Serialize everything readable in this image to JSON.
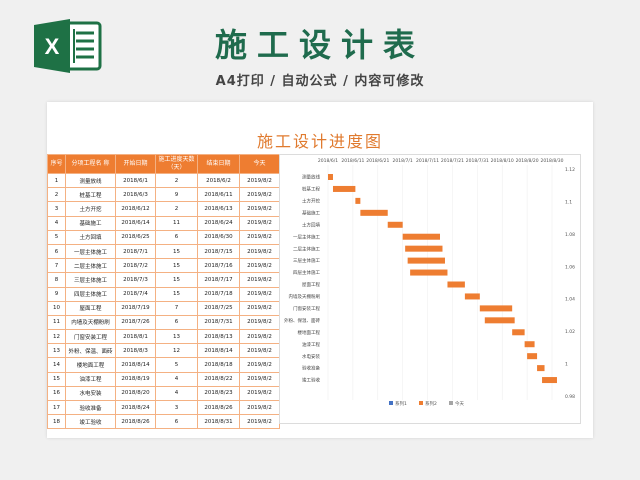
{
  "header": {
    "title": "施工设计表",
    "subtitle": "A4打印 / 自动公式 / 内容可修改"
  },
  "colors": {
    "accent": "#ee7d31",
    "title_green": "#1f6b4d",
    "excel_green": "#1e7145"
  },
  "icons": {
    "app_icon": "excel-icon"
  },
  "sheet": {
    "title": "施工设计进度图"
  },
  "table": {
    "columns": [
      "序号",
      "分项工程名 称",
      "开始日期",
      "施工进度天数（天）",
      "结束日期",
      "今天"
    ],
    "rows": [
      [
        "1",
        "测量放线",
        "2018/6/1",
        "2",
        "2018/6/2",
        "2019/8/2"
      ],
      [
        "2",
        "桩基工程",
        "2018/6/3",
        "9",
        "2018/6/11",
        "2019/8/2"
      ],
      [
        "3",
        "土方开挖",
        "2018/6/12",
        "2",
        "2018/6/13",
        "2019/8/2"
      ],
      [
        "4",
        "基础施工",
        "2018/6/14",
        "11",
        "2018/6/24",
        "2019/8/2"
      ],
      [
        "5",
        "土方回填",
        "2018/6/25",
        "6",
        "2018/6/30",
        "2019/8/2"
      ],
      [
        "6",
        "一层主体施工",
        "2018/7/1",
        "15",
        "2018/7/15",
        "2019/8/2"
      ],
      [
        "7",
        "二层主体施工",
        "2018/7/2",
        "15",
        "2018/7/16",
        "2019/8/2"
      ],
      [
        "8",
        "三层主体施工",
        "2018/7/3",
        "15",
        "2018/7/17",
        "2019/8/2"
      ],
      [
        "9",
        "四层主体施工",
        "2018/7/4",
        "15",
        "2018/7/18",
        "2019/8/2"
      ],
      [
        "10",
        "屋面工程",
        "2018/7/19",
        "7",
        "2018/7/25",
        "2019/8/2"
      ],
      [
        "11",
        "内墙及天棚粉刷",
        "2018/7/26",
        "6",
        "2018/7/31",
        "2019/8/2"
      ],
      [
        "12",
        "门窗安装工程",
        "2018/8/1",
        "13",
        "2018/8/13",
        "2019/8/2"
      ],
      [
        "13",
        "外粉、保温、面砖",
        "2018/8/3",
        "12",
        "2018/8/14",
        "2019/8/2"
      ],
      [
        "14",
        "楼地面工程",
        "2018/8/14",
        "5",
        "2018/8/18",
        "2019/8/2"
      ],
      [
        "15",
        "油漆工程",
        "2018/8/19",
        "4",
        "2018/8/22",
        "2019/8/2"
      ],
      [
        "16",
        "水电安装",
        "2018/8/20",
        "4",
        "2018/8/23",
        "2019/8/2"
      ],
      [
        "17",
        "验收准备",
        "2018/8/24",
        "3",
        "2018/8/26",
        "2019/8/2"
      ],
      [
        "18",
        "竣工验收",
        "2018/8/26",
        "6",
        "2018/8/31",
        "2019/8/2"
      ]
    ]
  },
  "chart_data": {
    "type": "bar",
    "orientation": "horizontal-gantt",
    "x_ticks": [
      "2018/6/1",
      "2018/6/11",
      "2018/6/21",
      "2018/7/1",
      "2018/7/11",
      "2018/7/21",
      "2018/7/31",
      "2018/8/10",
      "2018/8/20",
      "2018/8/30"
    ],
    "x_range": [
      "2018/6/1",
      "2018/8/30"
    ],
    "categories": [
      "测量放线",
      "桩基工程",
      "土方开挖",
      "基础施工",
      "土方回填",
      "一层主体施工",
      "二层主体施工",
      "三层主体施工",
      "四层主体施工",
      "屋面工程",
      "内墙及天棚粉刷",
      "门窗安装工程",
      "外粉、保温、面砖",
      "楼地面工程",
      "油漆工程",
      "水电安装",
      "验收准备",
      "竣工验收"
    ],
    "start": [
      "2018/6/1",
      "2018/6/3",
      "2018/6/12",
      "2018/6/14",
      "2018/6/25",
      "2018/7/1",
      "2018/7/2",
      "2018/7/3",
      "2018/7/4",
      "2018/7/19",
      "2018/7/26",
      "2018/8/1",
      "2018/8/3",
      "2018/8/14",
      "2018/8/19",
      "2018/8/20",
      "2018/8/24",
      "2018/8/26"
    ],
    "duration_days": [
      2,
      9,
      2,
      11,
      6,
      15,
      15,
      15,
      15,
      7,
      6,
      13,
      12,
      5,
      4,
      4,
      3,
      6
    ],
    "y2_ticks": [
      "1.12",
      "1.1",
      "1.08",
      "1.06",
      "1.04",
      "1.02",
      "1",
      "0.98"
    ],
    "legend": [
      "系列1",
      "系列2",
      "今天"
    ],
    "legend_position": "bottom",
    "bar_color": "#ee7d31"
  }
}
